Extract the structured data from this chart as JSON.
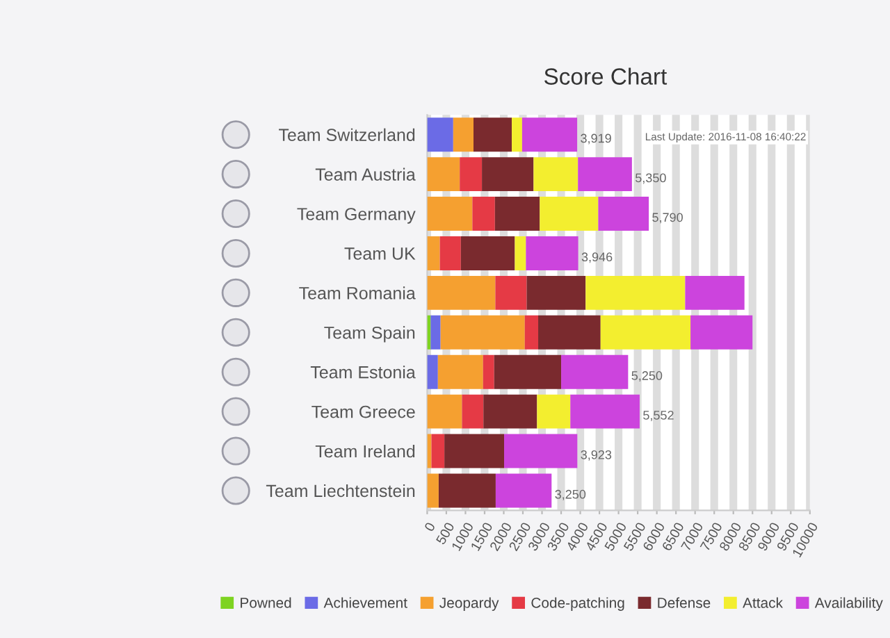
{
  "chart_data": {
    "type": "bar",
    "orientation": "horizontal",
    "stacked": true,
    "title": "Score Chart",
    "subtitle": "Last Update: 2016-11-08 16:40:22",
    "categories": [
      "Team Switzerland",
      "Team Austria",
      "Team Germany",
      "Team UK",
      "Team Romania",
      "Team Spain",
      "Team Estonia",
      "Team Greece",
      "Team Ireland",
      "Team Liechtenstein"
    ],
    "series": [
      {
        "name": "Powned",
        "color": "#7ed321",
        "values": [
          0,
          0,
          0,
          0,
          0,
          90,
          0,
          0,
          0,
          0
        ]
      },
      {
        "name": "Achievement",
        "color": "#6b6be6",
        "values": [
          680,
          0,
          0,
          0,
          0,
          260,
          280,
          0,
          0,
          0
        ]
      },
      {
        "name": "Jeopardy",
        "color": "#f5a030",
        "values": [
          530,
          850,
          1180,
          330,
          1780,
          2200,
          1180,
          910,
          110,
          300
        ]
      },
      {
        "name": "Code-patching",
        "color": "#e53a45",
        "values": [
          0,
          580,
          590,
          550,
          820,
          350,
          290,
          560,
          340,
          0
        ]
      },
      {
        "name": "Defense",
        "color": "#7a2a2e",
        "values": [
          1000,
          1350,
          1170,
          1410,
          1540,
          1630,
          1750,
          1400,
          1560,
          1490
        ]
      },
      {
        "name": "Attack",
        "color": "#f3ee2f",
        "values": [
          270,
          1160,
          1530,
          290,
          2600,
          2350,
          0,
          870,
          0,
          0
        ]
      },
      {
        "name": "Availability",
        "color": "#cc44dd",
        "values": [
          1439,
          1410,
          1320,
          1366,
          1550,
          1620,
          1750,
          1812,
          1913,
          1460
        ]
      }
    ],
    "totals": [
      "3,919",
      "5,350",
      "5,790",
      "3,946",
      null,
      null,
      "5,250",
      "5,552",
      "3,923",
      "3,250"
    ],
    "xlim": [
      0,
      10000
    ],
    "xticks": [
      0,
      500,
      1000,
      1500,
      2000,
      2500,
      3000,
      3500,
      4000,
      4500,
      5000,
      5500,
      6000,
      6500,
      7000,
      7500,
      8000,
      8500,
      9000,
      9500,
      10000
    ],
    "grid": "x",
    "legend": "bottom"
  }
}
